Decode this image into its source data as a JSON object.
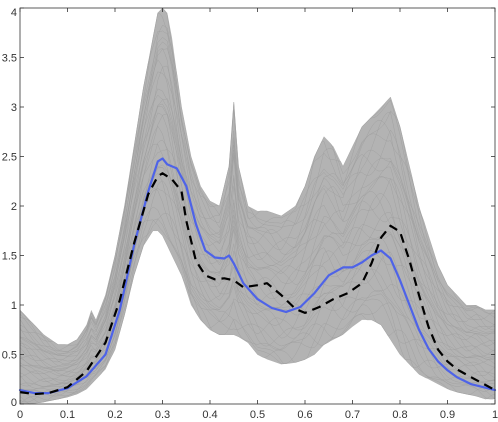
{
  "chart_data": {
    "type": "line",
    "title": "",
    "xlabel": "",
    "ylabel": "",
    "xlim": [
      0,
      1
    ],
    "ylim": [
      0,
      4
    ],
    "grid": false,
    "legend": "none",
    "x_ticks": [
      0,
      0.1,
      0.2,
      0.3,
      0.4,
      0.5,
      0.6,
      0.7,
      0.8,
      0.9,
      1
    ],
    "x_tick_labels": [
      "0",
      "0.1",
      "0.2",
      "0.3",
      "0.4",
      "0.5",
      "0.6",
      "0.7",
      "0.8",
      "0.9",
      "1"
    ],
    "y_ticks": [
      0,
      0.5,
      1,
      1.5,
      2,
      2.5,
      3,
      3.5,
      4
    ],
    "y_tick_labels": [
      "0",
      "0.5",
      "1",
      "1.5",
      "2",
      "2.5",
      "3",
      "3.5",
      "4"
    ],
    "band": {
      "color": "#b3b3b3",
      "x": [
        0,
        0.02,
        0.05,
        0.08,
        0.1,
        0.12,
        0.14,
        0.15,
        0.16,
        0.18,
        0.2,
        0.22,
        0.24,
        0.26,
        0.28,
        0.29,
        0.3,
        0.31,
        0.32,
        0.34,
        0.36,
        0.38,
        0.4,
        0.42,
        0.44,
        0.45,
        0.46,
        0.48,
        0.5,
        0.52,
        0.55,
        0.58,
        0.6,
        0.62,
        0.64,
        0.66,
        0.68,
        0.7,
        0.72,
        0.74,
        0.76,
        0.78,
        0.8,
        0.82,
        0.84,
        0.86,
        0.88,
        0.9,
        0.92,
        0.94,
        0.96,
        0.98,
        1
      ],
      "upper": [
        0.95,
        0.85,
        0.7,
        0.6,
        0.6,
        0.65,
        0.8,
        0.95,
        0.85,
        1.1,
        1.5,
        2.0,
        2.6,
        3.2,
        3.7,
        3.95,
        4.0,
        3.95,
        3.7,
        3.0,
        2.5,
        2.2,
        2.05,
        2.0,
        2.4,
        3.05,
        2.4,
        2.0,
        1.95,
        1.95,
        1.9,
        2.0,
        2.2,
        2.5,
        2.7,
        2.6,
        2.4,
        2.6,
        2.8,
        2.9,
        3.0,
        3.1,
        2.8,
        2.4,
        2.0,
        1.7,
        1.4,
        1.2,
        1.1,
        1.0,
        1.0,
        0.95,
        0.95
      ],
      "lower": [
        0.0,
        0.0,
        0.02,
        0.05,
        0.07,
        0.1,
        0.15,
        0.2,
        0.25,
        0.35,
        0.55,
        0.9,
        1.3,
        1.6,
        1.75,
        1.75,
        1.7,
        1.6,
        1.5,
        1.3,
        1.0,
        0.85,
        0.75,
        0.7,
        0.7,
        0.7,
        0.68,
        0.62,
        0.5,
        0.45,
        0.4,
        0.42,
        0.45,
        0.5,
        0.6,
        0.65,
        0.7,
        0.78,
        0.85,
        0.85,
        0.8,
        0.65,
        0.5,
        0.4,
        0.3,
        0.25,
        0.2,
        0.15,
        0.12,
        0.1,
        0.08,
        0.05,
        0.05
      ]
    },
    "series": [
      {
        "color": "#4e63e8",
        "style": "solid",
        "x": [
          0,
          0.03,
          0.06,
          0.1,
          0.14,
          0.18,
          0.21,
          0.24,
          0.27,
          0.29,
          0.3,
          0.31,
          0.33,
          0.35,
          0.37,
          0.39,
          0.41,
          0.43,
          0.44,
          0.45,
          0.47,
          0.5,
          0.53,
          0.56,
          0.59,
          0.62,
          0.65,
          0.68,
          0.7,
          0.72,
          0.74,
          0.76,
          0.78,
          0.8,
          0.82,
          0.84,
          0.86,
          0.88,
          0.9,
          0.92,
          0.95,
          1.0
        ],
        "y": [
          0.14,
          0.11,
          0.11,
          0.16,
          0.28,
          0.5,
          0.95,
          1.6,
          2.15,
          2.45,
          2.48,
          2.42,
          2.38,
          2.2,
          1.82,
          1.55,
          1.48,
          1.47,
          1.5,
          1.42,
          1.22,
          1.06,
          0.97,
          0.93,
          0.98,
          1.12,
          1.3,
          1.38,
          1.38,
          1.43,
          1.5,
          1.55,
          1.47,
          1.25,
          1.0,
          0.75,
          0.56,
          0.43,
          0.34,
          0.27,
          0.2,
          0.14
        ]
      },
      {
        "color": "#000000",
        "style": "dashed",
        "x": [
          0,
          0.03,
          0.06,
          0.1,
          0.14,
          0.18,
          0.21,
          0.24,
          0.27,
          0.29,
          0.3,
          0.32,
          0.34,
          0.35,
          0.37,
          0.39,
          0.41,
          0.43,
          0.45,
          0.47,
          0.5,
          0.52,
          0.55,
          0.58,
          0.6,
          0.63,
          0.66,
          0.69,
          0.72,
          0.74,
          0.76,
          0.78,
          0.8,
          0.82,
          0.84,
          0.86,
          0.88,
          0.9,
          0.92,
          0.95,
          1.0
        ],
        "y": [
          0.12,
          0.1,
          0.11,
          0.17,
          0.33,
          0.62,
          1.05,
          1.62,
          2.12,
          2.3,
          2.33,
          2.27,
          2.15,
          1.85,
          1.45,
          1.3,
          1.26,
          1.27,
          1.25,
          1.18,
          1.2,
          1.22,
          1.1,
          0.96,
          0.92,
          0.98,
          1.06,
          1.12,
          1.22,
          1.42,
          1.68,
          1.8,
          1.74,
          1.45,
          1.1,
          0.78,
          0.55,
          0.43,
          0.35,
          0.27,
          0.14
        ]
      }
    ]
  }
}
